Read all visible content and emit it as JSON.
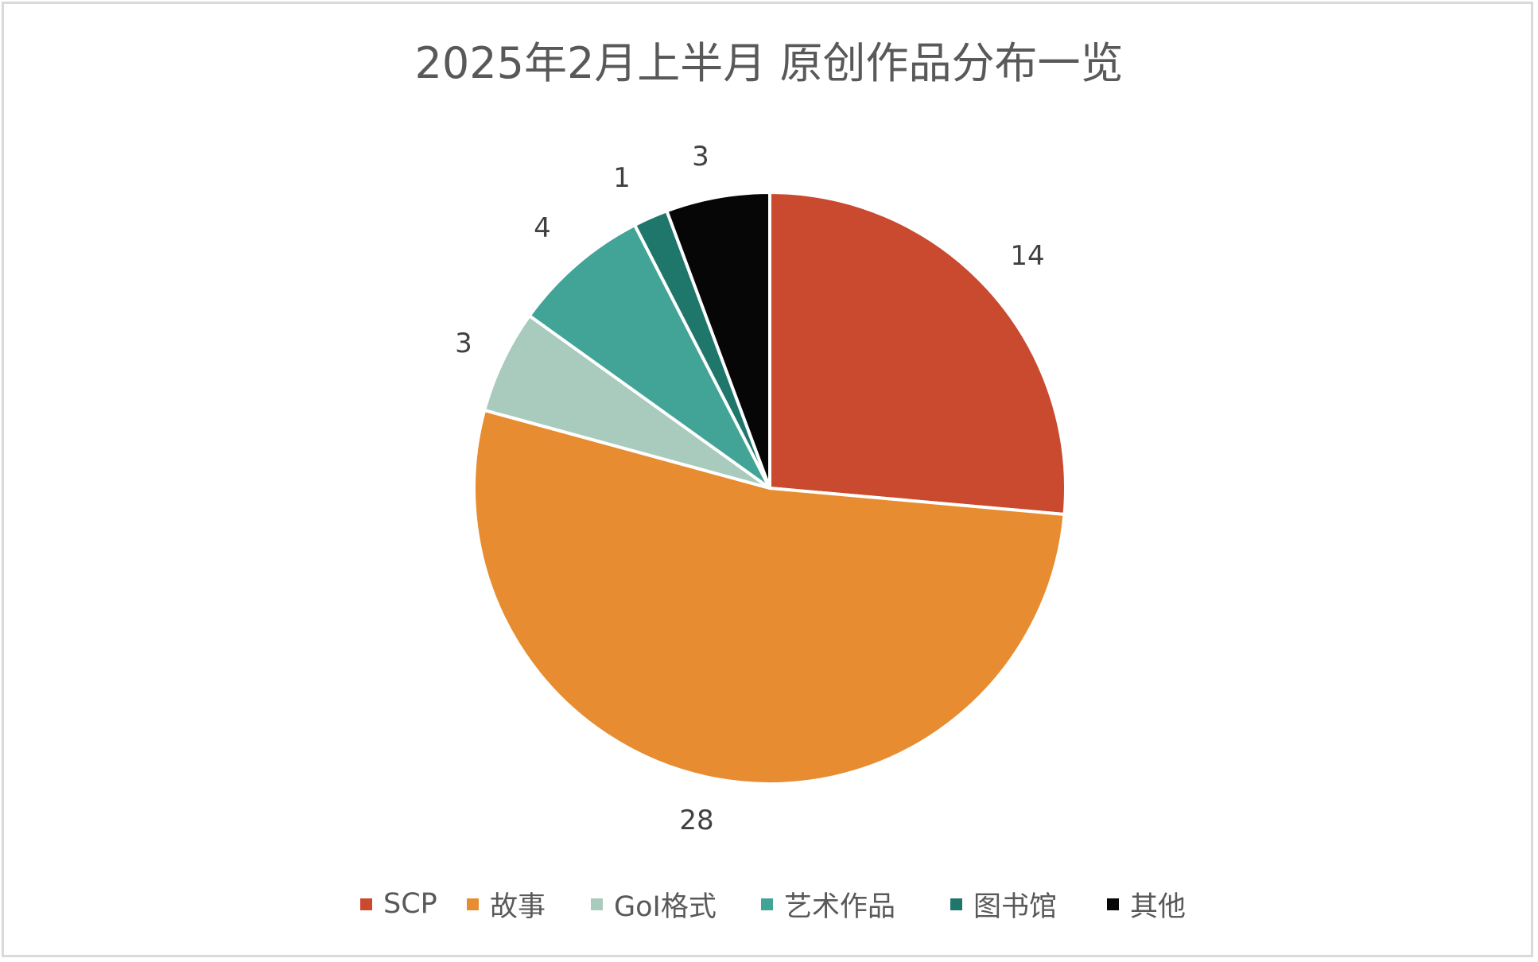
{
  "chart_data": {
    "type": "pie",
    "title": "2025年2月上半月 原创作品分布一览",
    "categories": [
      "SCP",
      "故事",
      "GoI格式",
      "艺术作品",
      "图书馆",
      "其他"
    ],
    "values": [
      14,
      28,
      3,
      4,
      1,
      3
    ],
    "colors": [
      "#C94A2F",
      "#E78C30",
      "#A8CBBD",
      "#42A497",
      "#1F776B",
      "#060606"
    ],
    "start_angle_deg": 0,
    "direction": "clockwise",
    "data_labels": [
      "14",
      "28",
      "3",
      "4",
      "1",
      "3"
    ],
    "legend_position": "bottom",
    "xlabel": "",
    "ylabel": ""
  },
  "title": "2025年2月上半月 原创作品分布一览",
  "labels": {
    "scp": "14",
    "story": "28",
    "goi": "3",
    "art": "4",
    "library": "1",
    "other": "3"
  },
  "legend": {
    "items": [
      {
        "label": "SCP",
        "color": "#C94A2F"
      },
      {
        "label": "故事",
        "color": "#E78C30"
      },
      {
        "label": "GoI格式",
        "color": "#A8CBBD"
      },
      {
        "label": "艺术作品",
        "color": "#42A497"
      },
      {
        "label": "图书馆",
        "color": "#1F776B"
      },
      {
        "label": "其他",
        "color": "#060606"
      }
    ]
  }
}
